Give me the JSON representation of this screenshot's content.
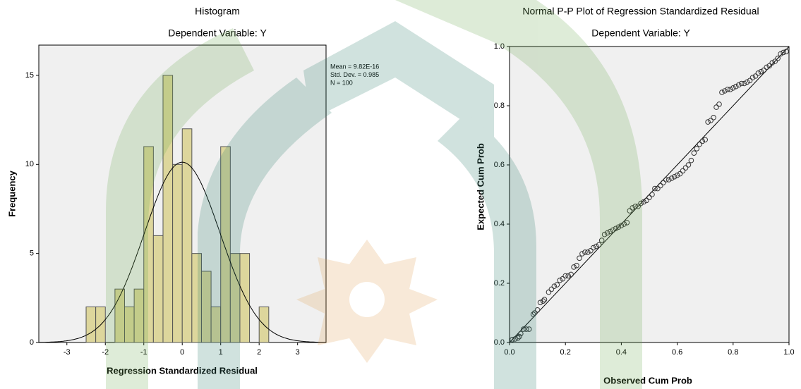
{
  "chart_data": [
    {
      "type": "histogram",
      "title": "Histogram",
      "subtitle": "Dependent Variable: Y",
      "x_label": "Regression Standardized Residual",
      "y_label": "Frequency",
      "bins": [
        -2.5,
        -2.25,
        -2.0,
        -1.75,
        -1.5,
        -1.25,
        -1.0,
        -0.75,
        -0.5,
        -0.25,
        0,
        0.25,
        0.5,
        0.75,
        1.0,
        1.25,
        1.5,
        1.75,
        2.0,
        2.25
      ],
      "values": [
        2,
        2,
        0,
        3,
        2,
        3,
        11,
        6,
        15,
        10,
        12,
        5,
        4,
        2,
        11,
        5,
        5,
        0,
        2
      ],
      "color": "#ddd69c",
      "xlim": [
        -3.73,
        3.74
      ],
      "ylim": [
        0,
        16.7
      ],
      "xticks": [
        -3,
        -2,
        -1,
        0,
        1,
        2,
        3
      ],
      "yticks": [
        0,
        5,
        10,
        15
      ],
      "stats": [
        {
          "value": 9.82e-16,
          "label": "Mean = 9.82E-16"
        },
        {
          "value": 0.985,
          "label": "Std. Dev. = 0.985"
        },
        {
          "value": 100,
          "label": "N = 100"
        }
      ]
    },
    {
      "type": "scatter",
      "title": "Normal P-P Plot of Regression Standardized Residual",
      "subtitle": "Dependent Variable: Y",
      "x_label": "Observed Cum Prob",
      "y_label": "Expected Cum Prob",
      "x": [
        0.01,
        0.02,
        0.03,
        0.035,
        0.04,
        0.05,
        0.06,
        0.07,
        0.085,
        0.09,
        0.1,
        0.11,
        0.12,
        0.125,
        0.14,
        0.15,
        0.16,
        0.17,
        0.18,
        0.19,
        0.2,
        0.21,
        0.22,
        0.23,
        0.24,
        0.25,
        0.26,
        0.27,
        0.28,
        0.29,
        0.3,
        0.31,
        0.32,
        0.33,
        0.34,
        0.35,
        0.36,
        0.37,
        0.38,
        0.39,
        0.4,
        0.41,
        0.42,
        0.43,
        0.44,
        0.45,
        0.46,
        0.47,
        0.48,
        0.49,
        0.5,
        0.51,
        0.52,
        0.53,
        0.54,
        0.55,
        0.56,
        0.57,
        0.58,
        0.59,
        0.6,
        0.61,
        0.62,
        0.63,
        0.64,
        0.65,
        0.66,
        0.67,
        0.68,
        0.69,
        0.7,
        0.71,
        0.72,
        0.73,
        0.74,
        0.75,
        0.76,
        0.77,
        0.78,
        0.79,
        0.8,
        0.81,
        0.82,
        0.83,
        0.84,
        0.85,
        0.86,
        0.87,
        0.88,
        0.89,
        0.9,
        0.91,
        0.92,
        0.93,
        0.94,
        0.95,
        0.96,
        0.97,
        0.98,
        0.99
      ],
      "values": [
        0.01,
        0.012,
        0.015,
        0.02,
        0.03,
        0.045,
        0.045,
        0.045,
        0.095,
        0.1,
        0.11,
        0.135,
        0.14,
        0.145,
        0.17,
        0.18,
        0.19,
        0.195,
        0.21,
        0.215,
        0.225,
        0.225,
        0.23,
        0.255,
        0.26,
        0.285,
        0.3,
        0.305,
        0.305,
        0.31,
        0.32,
        0.325,
        0.33,
        0.345,
        0.365,
        0.37,
        0.375,
        0.38,
        0.385,
        0.39,
        0.395,
        0.4,
        0.405,
        0.445,
        0.455,
        0.46,
        0.46,
        0.47,
        0.475,
        0.48,
        0.49,
        0.5,
        0.52,
        0.52,
        0.53,
        0.54,
        0.55,
        0.55,
        0.555,
        0.56,
        0.565,
        0.57,
        0.58,
        0.59,
        0.6,
        0.615,
        0.64,
        0.655,
        0.67,
        0.68,
        0.685,
        0.745,
        0.75,
        0.76,
        0.795,
        0.805,
        0.845,
        0.85,
        0.855,
        0.855,
        0.86,
        0.865,
        0.87,
        0.875,
        0.875,
        0.88,
        0.885,
        0.895,
        0.9,
        0.91,
        0.915,
        0.92,
        0.93,
        0.935,
        0.945,
        0.95,
        0.96,
        0.975,
        0.98,
        0.983
      ],
      "color": "#333333",
      "xlim": [
        0,
        1
      ],
      "ylim": [
        0,
        1
      ],
      "xticks": [
        {
          "value": 0,
          "label": "0.0"
        },
        0.2,
        0.4,
        0.6,
        0.8,
        {
          "value": 1,
          "label": "1.0"
        }
      ],
      "yticks": [
        {
          "value": 0,
          "label": "0.0"
        },
        0.2,
        0.4,
        0.6,
        0.8,
        {
          "value": 1,
          "label": "1.0"
        }
      ]
    }
  ]
}
